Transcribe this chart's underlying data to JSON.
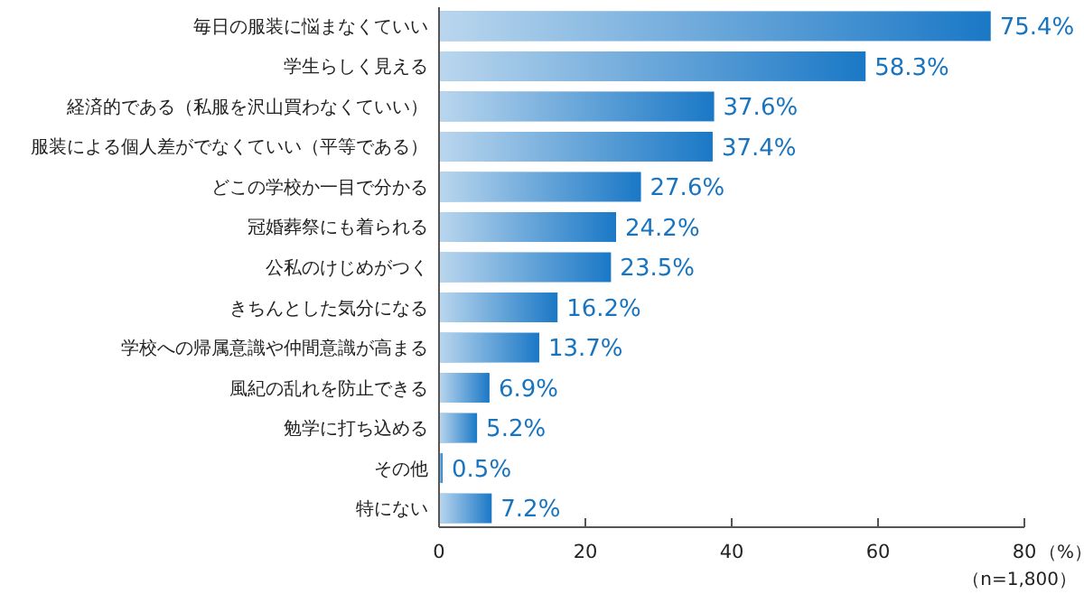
{
  "chart_data": {
    "type": "bar",
    "orientation": "horizontal",
    "categories": [
      "毎日の服装に悩まなくていい",
      "学生らしく見える",
      "経済的である（私服を沢山買わなくていい）",
      "服装による個人差がでなくていい（平等である）",
      "どこの学校か一目で分かる",
      "冠婚葬祭にも着られる",
      "公私のけじめがつく",
      "きちんとした気分になる",
      "学校への帰属意識や仲間意識が高まる",
      "風紀の乱れを防止できる",
      "勉学に打ち込める",
      "その他",
      "特にない"
    ],
    "values": [
      75.4,
      58.3,
      37.6,
      37.4,
      27.6,
      24.2,
      23.5,
      16.2,
      13.7,
      6.9,
      5.2,
      0.5,
      7.2
    ],
    "value_labels": [
      "75.4%",
      "58.3%",
      "37.6%",
      "37.4%",
      "27.6%",
      "24.2%",
      "23.5%",
      "16.2%",
      "13.7%",
      "6.9%",
      "5.2%",
      "0.5%",
      "7.2%"
    ],
    "color": "#1a78c6",
    "xlim": [
      0,
      80
    ],
    "xticks": [
      0,
      20,
      40,
      60,
      80
    ],
    "xlabel": "（%）",
    "annotations": [
      "（n=1,800）"
    ],
    "grid": false
  }
}
